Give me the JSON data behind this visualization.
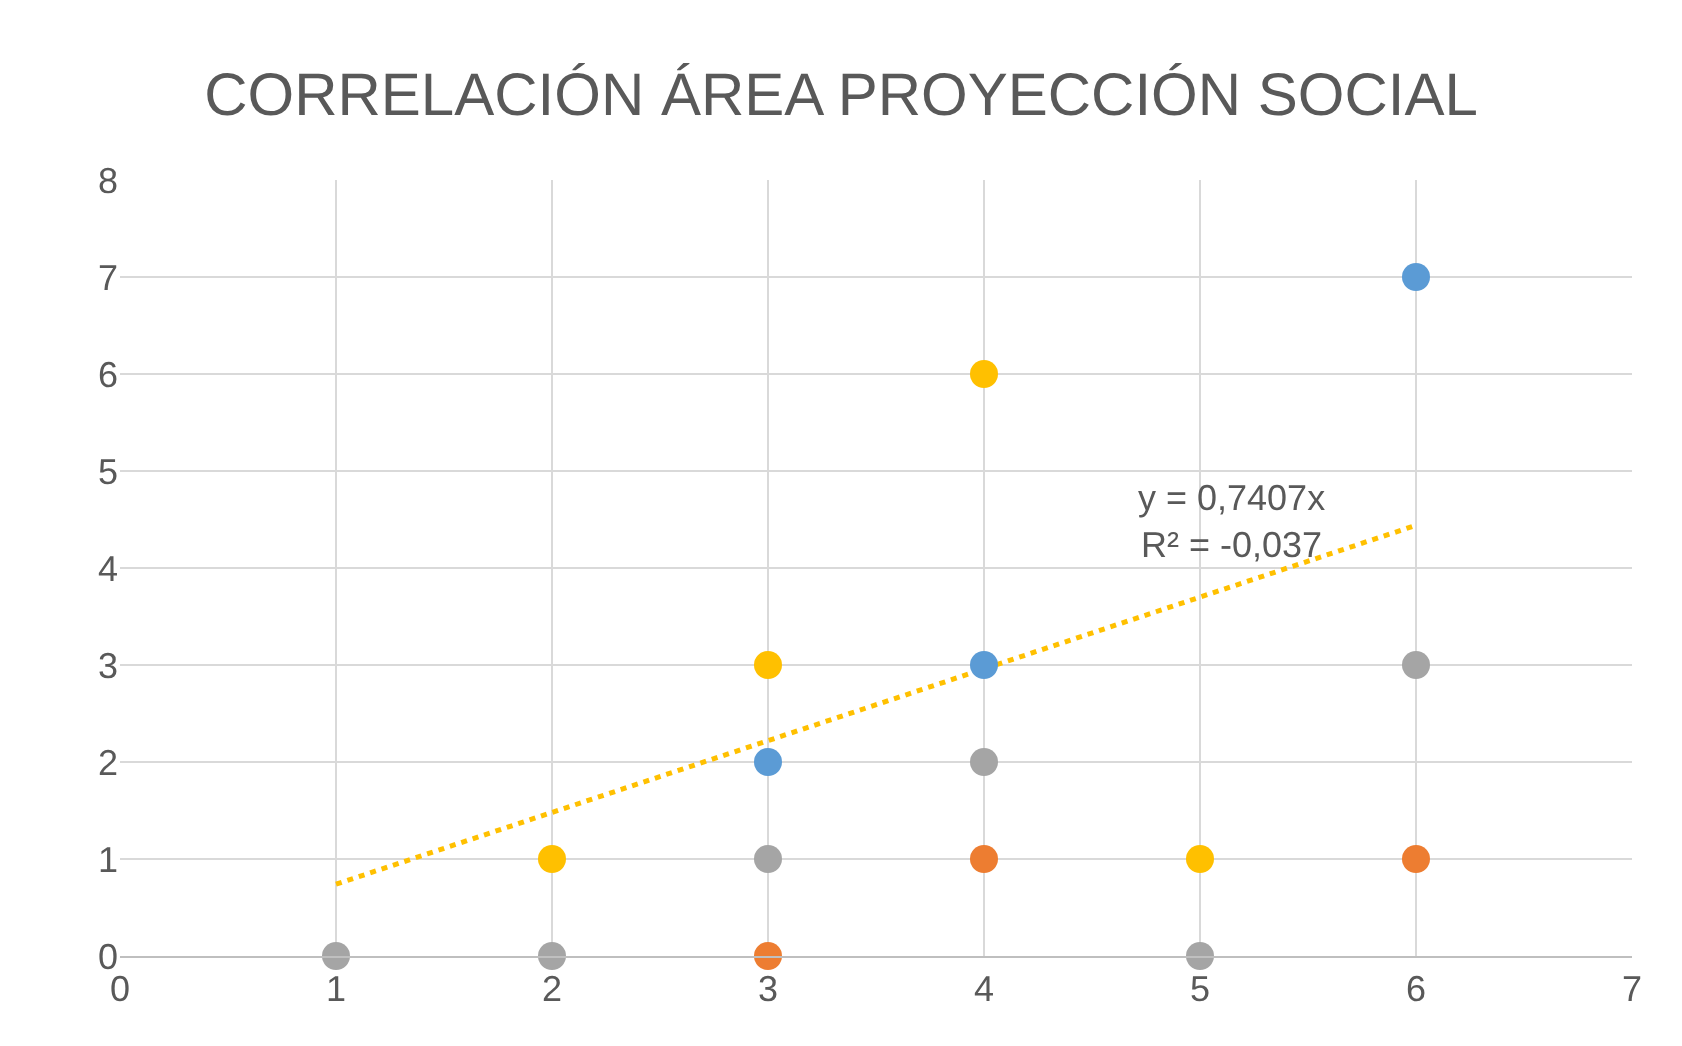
{
  "chart_data": {
    "type": "scatter",
    "title": "CORRELACIÓN ÁREA PROYECCIÓN SOCIAL",
    "xlim": [
      0,
      7
    ],
    "xticks": [
      0,
      1,
      2,
      3,
      4,
      5,
      6,
      7
    ],
    "ylim": [
      0,
      8
    ],
    "yticks": [
      0,
      1,
      2,
      3,
      4,
      5,
      6,
      7,
      8
    ],
    "grid": true,
    "marker": "circle",
    "series": [
      {
        "color": "#5b9bd5",
        "x": [
          3,
          4,
          6
        ],
        "values": [
          2,
          3,
          7
        ]
      },
      {
        "color": "#ed7d31",
        "x": [
          3,
          4,
          6
        ],
        "values": [
          0,
          1,
          1
        ]
      },
      {
        "color": "#a5a5a5",
        "x": [
          1,
          2,
          3,
          4,
          5,
          6
        ],
        "values": [
          0,
          0,
          1,
          2,
          0,
          3
        ]
      },
      {
        "color": "#ffc000",
        "x": [
          2,
          3,
          4,
          5
        ],
        "values": [
          1,
          3,
          6,
          1
        ]
      },
      {
        "type": "line",
        "color": "#ffc000",
        "line_style": "dotted",
        "marker": "none",
        "x": [
          1,
          6
        ],
        "values": [
          0.74,
          4.44
        ]
      }
    ],
    "annotations": [
      "y = 0,7407x\nR² = -0,037"
    ]
  }
}
